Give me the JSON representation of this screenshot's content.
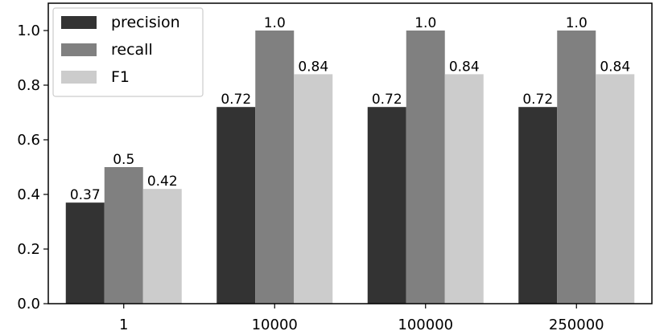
{
  "chart_data": {
    "type": "bar",
    "categories": [
      "1",
      "10000",
      "100000",
      "250000"
    ],
    "series": [
      {
        "name": "precision",
        "values": [
          0.37,
          0.72,
          0.72,
          0.72
        ],
        "labels": [
          "0.37",
          "0.72",
          "0.72",
          "0.72"
        ],
        "color": "#333333"
      },
      {
        "name": "recall",
        "values": [
          0.5,
          1.0,
          1.0,
          1.0
        ],
        "labels": [
          "0.5",
          "1.0",
          "1.0",
          "1.0"
        ],
        "color": "#808080"
      },
      {
        "name": "F1",
        "values": [
          0.42,
          0.84,
          0.84,
          0.84
        ],
        "labels": [
          "0.42",
          "0.84",
          "0.84",
          "0.84"
        ],
        "color": "#cccccc"
      }
    ],
    "yticks": [
      "0.0",
      "0.2",
      "0.4",
      "0.6",
      "0.8",
      "1.0"
    ],
    "ylim": [
      0,
      1.1
    ],
    "grid": false,
    "legend": "top-left"
  }
}
